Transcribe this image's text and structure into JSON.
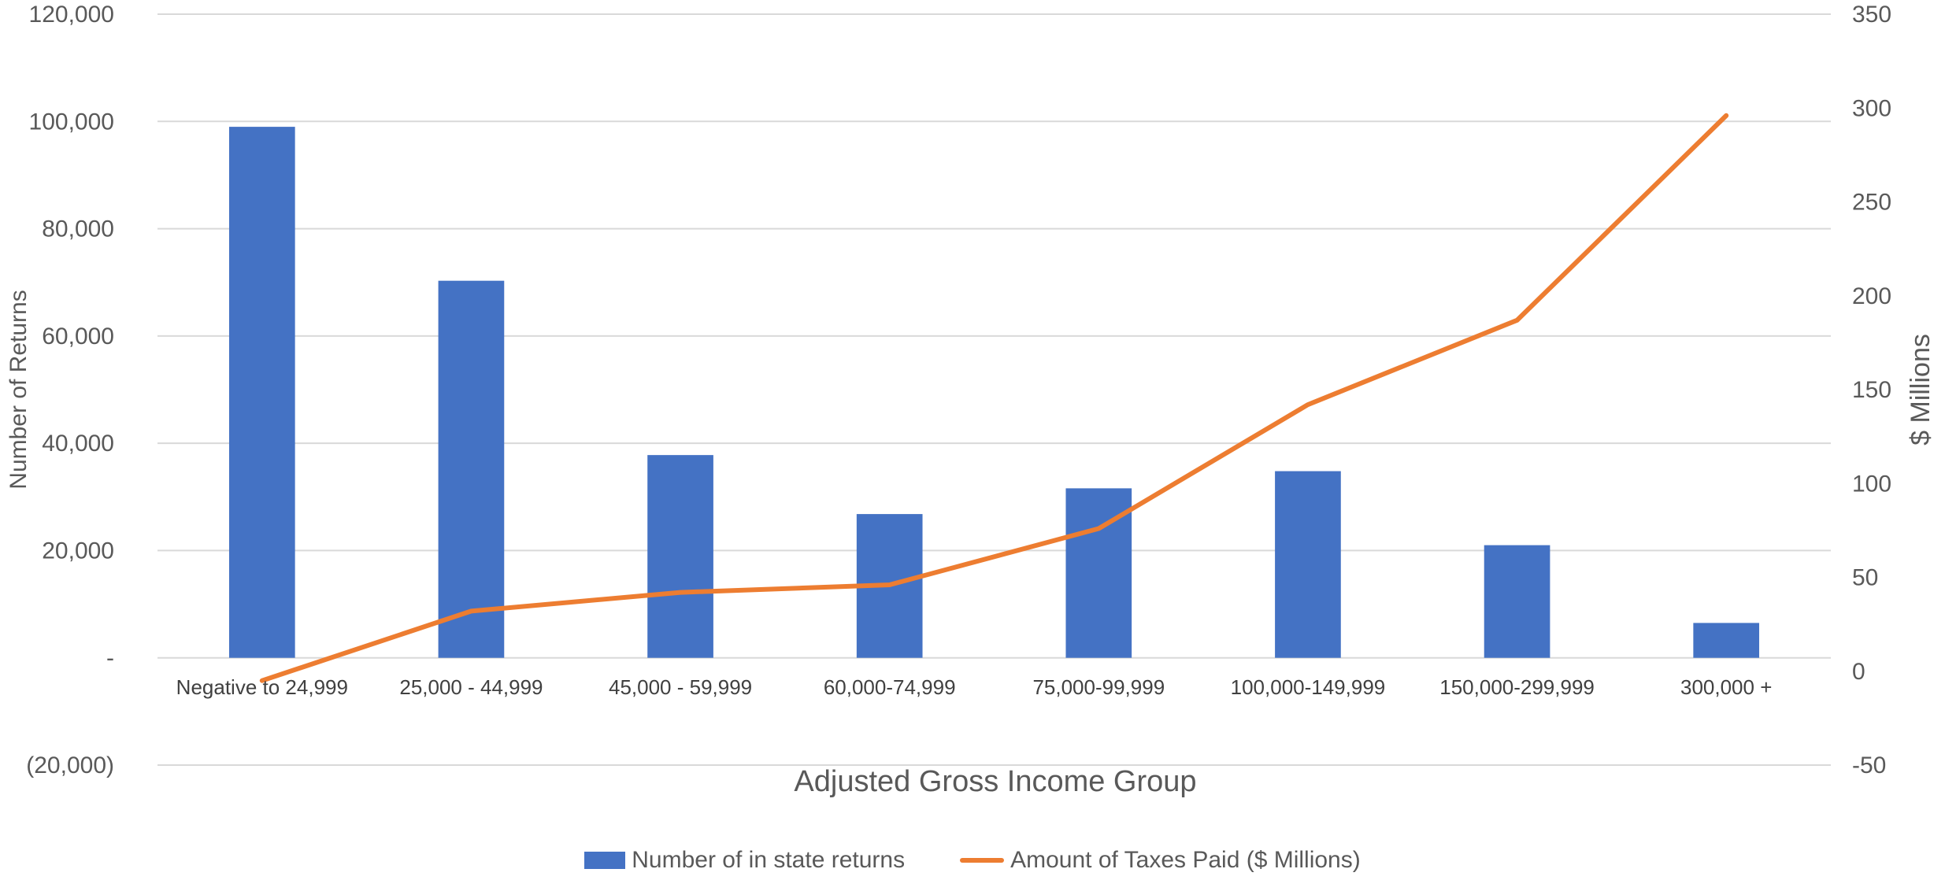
{
  "chart_data": {
    "type": "bar",
    "title": "",
    "xlabel": "Adjusted Gross Income Group",
    "ylabel": "Number of Returns",
    "y2label": "$ Millions",
    "categories": [
      "Negative to 24,999",
      "25,000 - 44,999",
      "45,000 - 59,999",
      "60,000-74,999",
      "75,000-99,999",
      "100,000-149,999",
      "150,000-299,999",
      "300,000 +"
    ],
    "series": [
      {
        "name": "Number of in state returns",
        "type": "bar",
        "axis": "left",
        "color": "#4472C4",
        "values": [
          99000,
          70300,
          37800,
          26800,
          31600,
          34800,
          21000,
          6500
        ]
      },
      {
        "name": "Amount of Taxes Paid ($ Millions)",
        "type": "line",
        "axis": "right",
        "color": "#ED7D31",
        "values": [
          -5,
          32,
          42,
          46,
          76,
          142,
          187,
          296
        ]
      }
    ],
    "ylim": [
      -20000,
      120000
    ],
    "y2lim": [
      -50,
      350
    ],
    "y_ticks": [
      "(20,000)",
      "-",
      "20,000",
      "40,000",
      "60,000",
      "80,000",
      "100,000",
      "120,000"
    ],
    "y_tick_values": [
      -20000,
      0,
      20000,
      40000,
      60000,
      80000,
      100000,
      120000
    ],
    "y2_ticks": [
      "-50",
      "0",
      "50",
      "100",
      "150",
      "200",
      "250",
      "300",
      "350"
    ],
    "y2_tick_values": [
      -50,
      0,
      50,
      100,
      150,
      200,
      250,
      300,
      350
    ],
    "grid": true,
    "legend_position": "bottom"
  }
}
